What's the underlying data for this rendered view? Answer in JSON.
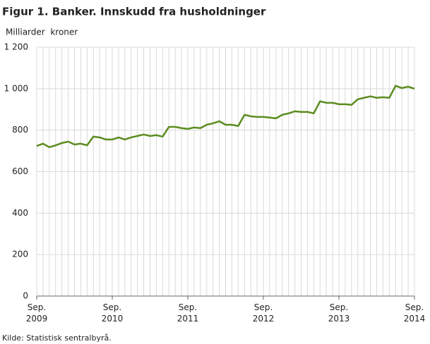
{
  "chart_data": {
    "type": "line",
    "title": "Figur 1. Banker. Innskudd fra husholdninger",
    "y_label": "Milliarder  kroner",
    "source": "Kilde: Statistisk sentralbyrå.",
    "categories": [
      "Sep. 2009",
      null,
      null,
      null,
      null,
      null,
      null,
      null,
      null,
      null,
      null,
      null,
      "Sep. 2010",
      null,
      null,
      null,
      null,
      null,
      null,
      null,
      null,
      null,
      null,
      null,
      "Sep. 2011",
      null,
      null,
      null,
      null,
      null,
      null,
      null,
      null,
      null,
      null,
      null,
      "Sep. 2012",
      null,
      null,
      null,
      null,
      null,
      null,
      null,
      null,
      null,
      null,
      null,
      "Sep. 2013",
      null,
      null,
      null,
      null,
      null,
      null,
      null,
      null,
      null,
      null,
      null,
      "Sep. 2014"
    ],
    "series": [
      {
        "color": "#5b8c1f",
        "values": [
          724,
          735,
          718,
          727,
          738,
          745,
          731,
          735,
          727,
          769,
          765,
          755,
          755,
          765,
          755,
          765,
          772,
          779,
          772,
          776,
          769,
          816,
          816,
          810,
          806,
          813,
          810,
          826,
          833,
          843,
          826,
          826,
          820,
          874,
          867,
          864,
          864,
          861,
          857,
          874,
          881,
          891,
          888,
          888,
          881,
          939,
          932,
          932,
          925,
          925,
          922,
          949,
          956,
          963,
          956,
          959,
          956,
          1014,
          1003,
          1010,
          1000
        ]
      }
    ],
    "ylim": [
      0,
      1200
    ],
    "yticks": [
      0,
      200,
      400,
      600,
      800,
      {
        "value": 1000,
        "label": "1 000"
      },
      {
        "value": 1200,
        "label": "1 200"
      }
    ],
    "grid": true
  }
}
